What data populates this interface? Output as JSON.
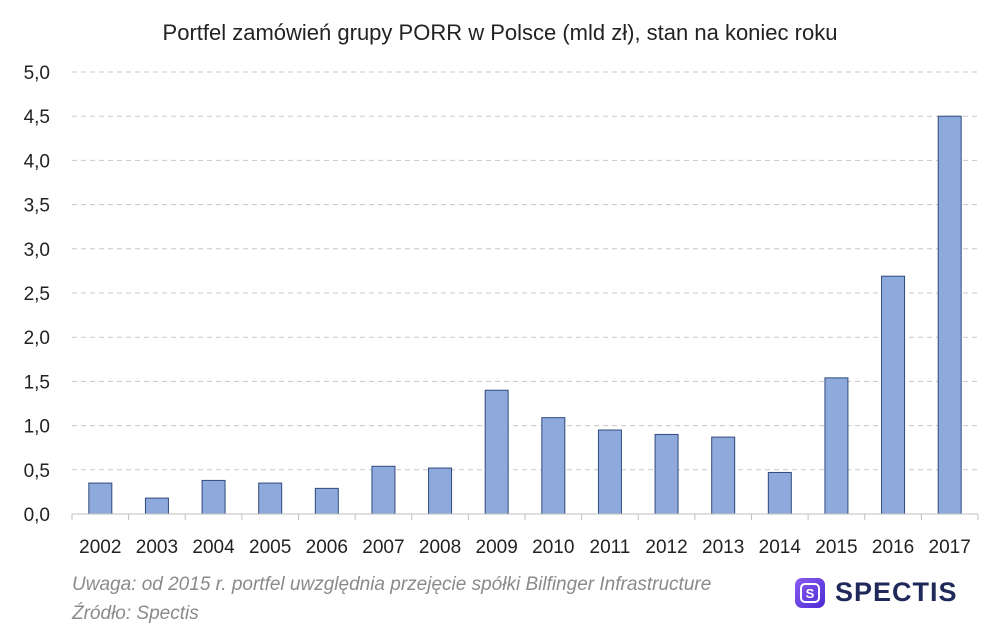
{
  "chart_data": {
    "type": "bar",
    "title": "Portfel zamówień grupy PORR w Polsce (mld zł), stan na koniec roku",
    "categories": [
      "2002",
      "2003",
      "2004",
      "2005",
      "2006",
      "2007",
      "2008",
      "2009",
      "2010",
      "2011",
      "2012",
      "2013",
      "2014",
      "2015",
      "2016",
      "2017"
    ],
    "values": [
      0.35,
      0.18,
      0.38,
      0.35,
      0.29,
      0.54,
      0.52,
      1.4,
      1.09,
      0.95,
      0.9,
      0.87,
      0.47,
      1.54,
      2.69,
      4.5
    ],
    "xlabel": "",
    "ylabel": "",
    "ylim": [
      0,
      5
    ],
    "yticks": [
      "0,0",
      "0,5",
      "1,0",
      "1,5",
      "2,0",
      "2,5",
      "3,0",
      "3,5",
      "4,0",
      "4,5",
      "5,0"
    ],
    "grid": true,
    "colors": {
      "bar_fill": "#8ea9db",
      "bar_stroke": "#2f4b7c",
      "grid": "#c8c8c8"
    }
  },
  "footnote": {
    "note": "Uwaga: od 2015 r. portfel uwzględnia przejęcie spółki Bilfinger Infrastructure",
    "source": "Źródło: Spectis"
  },
  "logo": {
    "text": "SPECTIS",
    "icon": "spectis-logo-icon"
  }
}
